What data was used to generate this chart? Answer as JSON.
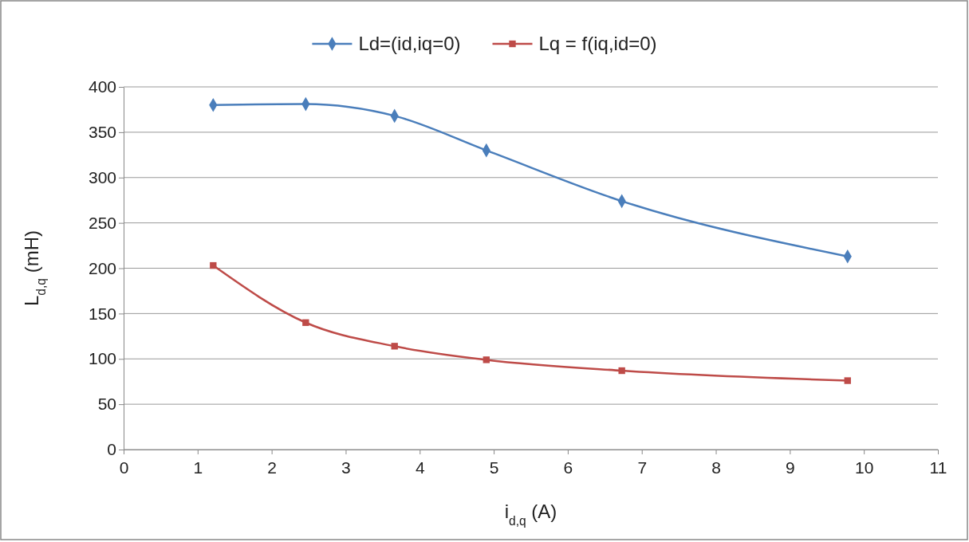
{
  "chart_data": {
    "type": "line",
    "xlabel": "i$_{d,q}$ (A)",
    "ylabel": "L$_{d,q}$ (mH)",
    "xlim": [
      0,
      11
    ],
    "xticks": [
      0,
      1,
      2,
      3,
      4,
      5,
      6,
      7,
      8,
      9,
      10,
      11
    ],
    "ylim": [
      0,
      400
    ],
    "yticks": [
      0,
      50,
      100,
      150,
      200,
      250,
      300,
      350,
      400
    ],
    "grid": "y",
    "legend": "top",
    "line_style": "solid",
    "series": [
      {
        "name": "Ld=(id,iq=0)",
        "color": "#4a7ebb",
        "marker": "diamond",
        "x": [
          1.21,
          2.46,
          3.66,
          4.9,
          6.73,
          9.78
        ],
        "values": [
          380,
          381,
          368,
          330,
          274,
          213
        ]
      },
      {
        "name": "Lq = f(iq,id=0)",
        "color": "#be4b48",
        "marker": "square",
        "x": [
          1.21,
          2.46,
          3.66,
          4.9,
          6.73,
          9.78
        ],
        "values": [
          203,
          140,
          114,
          99,
          87,
          76
        ]
      }
    ]
  }
}
